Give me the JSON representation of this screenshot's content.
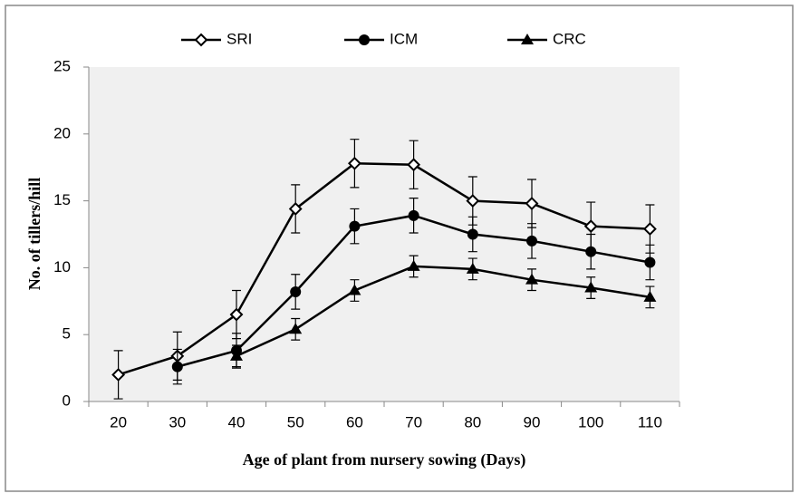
{
  "chart_data": {
    "type": "line",
    "xlabel": "Age of plant from nursery  sowing (Days)",
    "ylabel": "No. of tillers/hill",
    "categories": [
      20,
      30,
      40,
      50,
      60,
      70,
      80,
      90,
      100,
      110
    ],
    "series": [
      {
        "name": "SRI",
        "color": "#000000",
        "marker": "diamond-open",
        "values": [
          2.0,
          3.4,
          6.5,
          14.4,
          17.8,
          17.7,
          15.0,
          14.8,
          13.1,
          12.9
        ],
        "errors": [
          1.8,
          1.8,
          1.8,
          1.8,
          1.8,
          1.8,
          1.8,
          1.8,
          1.8,
          1.8
        ]
      },
      {
        "name": "ICM",
        "color": "#000000",
        "marker": "circle",
        "values": [
          null,
          2.6,
          3.8,
          8.2,
          13.1,
          13.9,
          12.5,
          12.0,
          11.2,
          10.4
        ],
        "errors": [
          null,
          1.3,
          1.3,
          1.3,
          1.3,
          1.3,
          1.3,
          1.3,
          1.3,
          1.3
        ]
      },
      {
        "name": "CRC",
        "color": "#000000",
        "marker": "triangle",
        "values": [
          null,
          null,
          3.4,
          5.4,
          8.3,
          10.1,
          9.9,
          9.1,
          8.5,
          7.8
        ],
        "errors": [
          null,
          null,
          0.8,
          0.8,
          0.8,
          0.8,
          0.8,
          0.8,
          0.8,
          0.8
        ]
      }
    ],
    "ylim": [
      0,
      25
    ],
    "yticks": [
      0,
      5,
      10,
      15,
      20,
      25
    ],
    "legend": "top"
  }
}
